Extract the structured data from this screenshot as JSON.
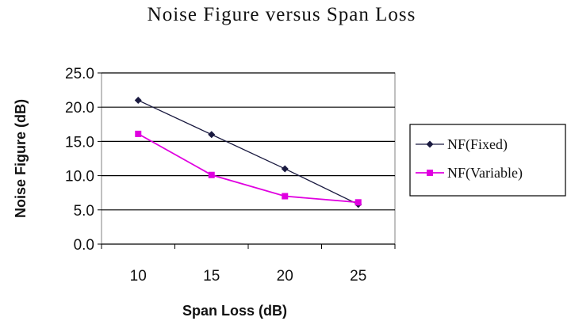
{
  "chart_data": {
    "type": "line",
    "title": "Noise Figure versus Span Loss",
    "xlabel": "Span Loss (dB)",
    "ylabel": "Noise Figure (dB)",
    "x": [
      10,
      15,
      20,
      25
    ],
    "x_tick_labels": [
      "10",
      "15",
      "20",
      "25"
    ],
    "ylim": [
      0,
      25
    ],
    "y_ticks": [
      0,
      5,
      10,
      15,
      20,
      25
    ],
    "y_tick_labels": [
      "0.0",
      "5.0",
      "10.0",
      "15.0",
      "20.0",
      "25.0"
    ],
    "grid": "horizontal",
    "legend_position": "right",
    "series": [
      {
        "name": "NF(Fixed)",
        "values": [
          21,
          16,
          11,
          5.8
        ],
        "color": "#1a1a40",
        "marker": "diamond"
      },
      {
        "name": "NF(Variable)",
        "values": [
          16.1,
          10.1,
          7,
          6.1
        ],
        "color": "#e000e0",
        "marker": "square"
      }
    ]
  }
}
